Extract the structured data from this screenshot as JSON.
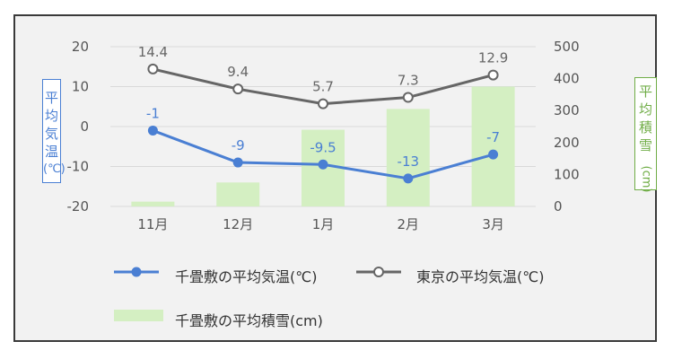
{
  "chart_data": {
    "type": "bar+line",
    "categories": [
      "11月",
      "12月",
      "1月",
      "2月",
      "3月"
    ],
    "series": [
      {
        "name": "千畳敷の平均積雪(cm)",
        "type": "bar",
        "axis": "right",
        "values": [
          15,
          75,
          240,
          305,
          375
        ],
        "data_labels": false
      },
      {
        "name": "千畳敷の平均気温(℃)",
        "type": "line",
        "axis": "left",
        "marker": "filled-circle",
        "values": [
          -1,
          -9,
          -9.5,
          -13,
          -7
        ],
        "labels": [
          "-1",
          "-9",
          "-9.5",
          "-13",
          "-7"
        ]
      },
      {
        "name": "東京の平均気温(℃)",
        "type": "line",
        "axis": "left",
        "marker": "hollow-circle",
        "values": [
          14.4,
          9.4,
          5.7,
          7.3,
          12.9
        ],
        "labels": [
          "14.4",
          "9.4",
          "5.7",
          "7.3",
          "12.9"
        ]
      }
    ],
    "y_left": {
      "label": "平均気温(℃)",
      "ylim": [
        -20,
        20
      ],
      "ticks": [
        20,
        10,
        0,
        -10,
        -20
      ]
    },
    "y_right": {
      "label": "平均積雪(cm)",
      "ylim": [
        0,
        500
      ],
      "ticks": [
        500,
        400,
        300,
        200,
        100,
        0
      ]
    },
    "grid": true,
    "legend_position": "bottom"
  },
  "colors": {
    "chitatami_line": "#4a7fd3",
    "tokyo_line": "#666666",
    "snow_bar": "#d4efc2",
    "left_axis_box": "#4a7fd3",
    "right_axis_box": "#70ad47",
    "grid": "#d9d9d9"
  },
  "y_left_label_chars": [
    "平",
    "均",
    "気",
    "温",
    "(℃)"
  ],
  "y_right_label_chars": [
    "平",
    "均",
    "積",
    "雪",
    "(cm)"
  ]
}
